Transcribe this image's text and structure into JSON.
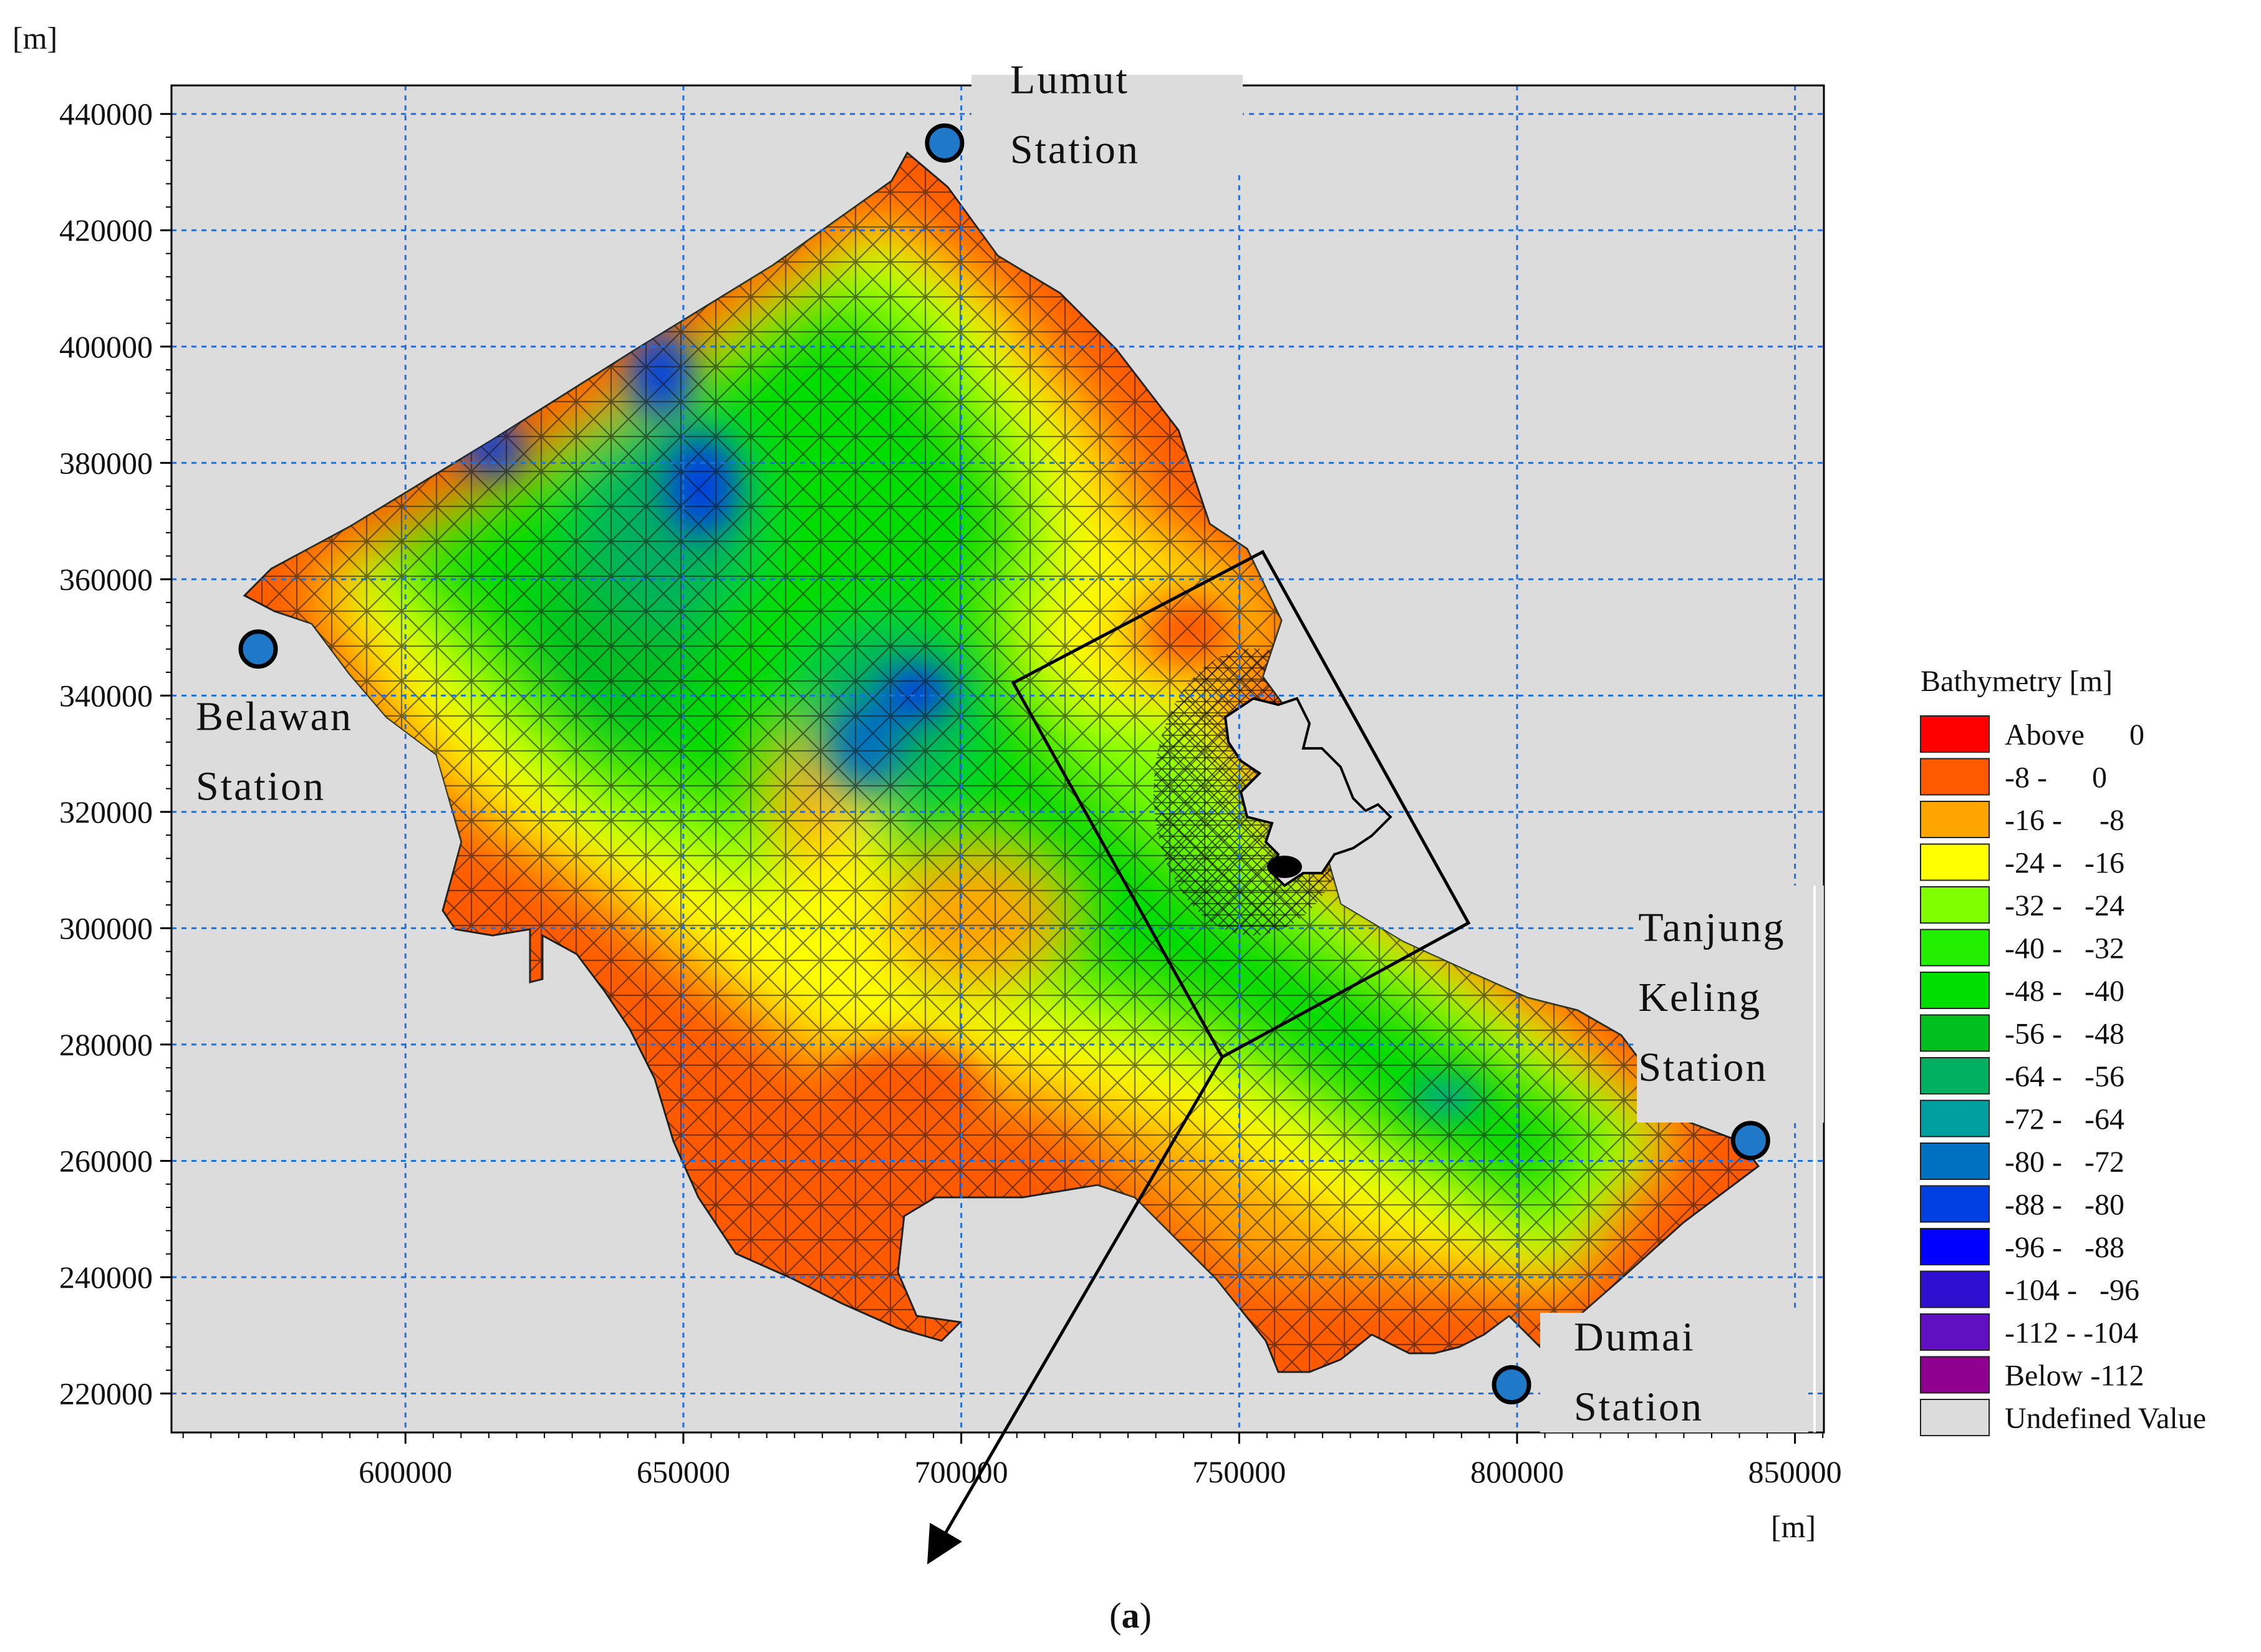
{
  "chart": {
    "y_unit": "[m]",
    "x_unit": "[m]",
    "y_ticks": [
      "440000",
      "420000",
      "400000",
      "380000",
      "360000",
      "340000",
      "320000",
      "300000",
      "280000",
      "260000",
      "240000",
      "220000"
    ],
    "x_ticks": [
      "600000",
      "650000",
      "700000",
      "750000",
      "800000",
      "850000"
    ],
    "caption_label": "a"
  },
  "stations": [
    {
      "line1": "Lumut",
      "line2": "Station",
      "x_m": 697000,
      "y_m": 435000
    },
    {
      "line1": "Belawan",
      "line2": "Station",
      "x_m": 573500,
      "y_m": 348000
    },
    {
      "line1": "Tanjung",
      "line2": "Keling",
      "line3": "Station",
      "x_m": 842000,
      "y_m": 263500
    },
    {
      "line1": "Dumai",
      "line2": "Station",
      "x_m": 799000,
      "y_m": 221500
    }
  ],
  "legend": {
    "title": "Bathymetry [m]",
    "items": [
      {
        "label": "Above      0",
        "color": "#ff0000"
      },
      {
        "label": "-8 -      0",
        "color": "#ff5a00"
      },
      {
        "label": "-16 -     -8",
        "color": "#ffa500"
      },
      {
        "label": "-24 -   -16",
        "color": "#ffff00"
      },
      {
        "label": "-32 -   -24",
        "color": "#80ff00"
      },
      {
        "label": "-40 -   -32",
        "color": "#22ee00"
      },
      {
        "label": "-48 -   -40",
        "color": "#00dd00"
      },
      {
        "label": "-56 -   -48",
        "color": "#00c020"
      },
      {
        "label": "-64 -   -56",
        "color": "#00b060"
      },
      {
        "label": "-72 -   -64",
        "color": "#00a0a0"
      },
      {
        "label": "-80 -   -72",
        "color": "#0070c0"
      },
      {
        "label": "-88 -   -80",
        "color": "#0040e0"
      },
      {
        "label": "-96 -   -88",
        "color": "#0000ff"
      },
      {
        "label": "-104 -   -96",
        "color": "#3010d0"
      },
      {
        "label": "-112 - -104",
        "color": "#6010c0"
      },
      {
        "label": "Below -112",
        "color": "#900090"
      },
      {
        "label": "Undefined Value",
        "color": "#dcdcdc"
      }
    ]
  },
  "colors": {
    "undefined": "#dcdcdc",
    "grid": "#1e6fe0",
    "station_fill": "#1f78c8"
  }
}
